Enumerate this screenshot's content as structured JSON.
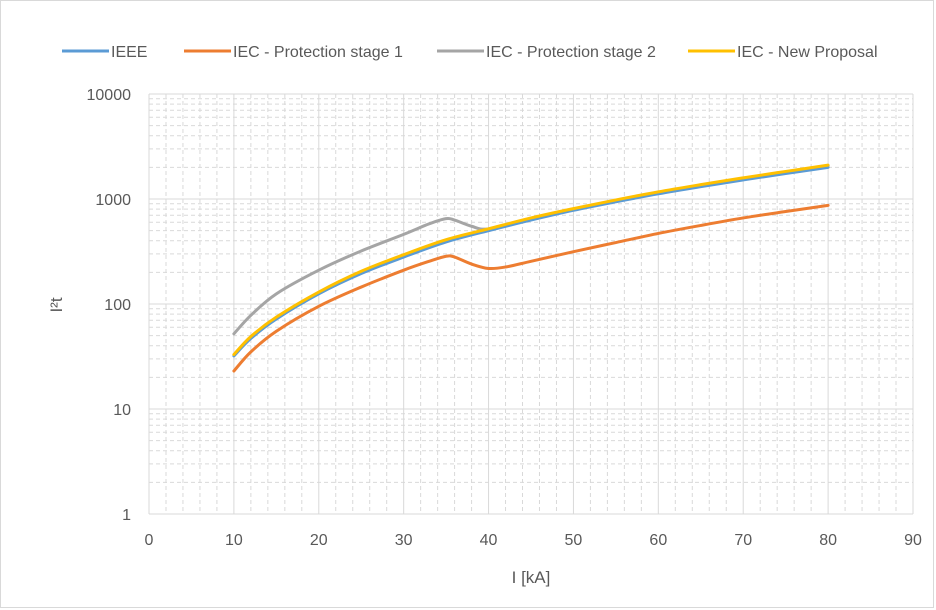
{
  "chart_data": {
    "type": "line",
    "title": "",
    "xlabel": "I [kA]",
    "ylabel": "I²t",
    "xlim": [
      0,
      90
    ],
    "ylim": [
      1,
      10000
    ],
    "yscale": "log",
    "x_ticks": [
      "0",
      "10",
      "20",
      "30",
      "40",
      "50",
      "60",
      "70",
      "80",
      "90"
    ],
    "y_ticks": [
      "1",
      "10",
      "100",
      "1000",
      "10000"
    ],
    "grid": "major solid, minor dashed",
    "legend": "top",
    "series": [
      {
        "name": "IEEE",
        "color": "#5b9bd5",
        "points": [
          [
            10,
            32
          ],
          [
            12,
            47
          ],
          [
            15,
            72
          ],
          [
            20,
            125
          ],
          [
            25,
            195
          ],
          [
            30,
            280
          ],
          [
            35,
            390
          ],
          [
            40,
            500
          ],
          [
            45,
            630
          ],
          [
            50,
            780
          ],
          [
            55,
            940
          ],
          [
            60,
            1120
          ],
          [
            65,
            1310
          ],
          [
            70,
            1520
          ],
          [
            75,
            1750
          ],
          [
            80,
            2000
          ]
        ]
      },
      {
        "name": "IEC - Protection stage 1",
        "color": "#ed7d31",
        "points": [
          [
            10,
            23
          ],
          [
            12,
            35
          ],
          [
            15,
            55
          ],
          [
            20,
            95
          ],
          [
            25,
            145
          ],
          [
            30,
            210
          ],
          [
            33,
            255
          ],
          [
            35,
            285
          ],
          [
            36,
            280
          ],
          [
            38,
            240
          ],
          [
            40,
            218
          ],
          [
            42,
            225
          ],
          [
            45,
            255
          ],
          [
            50,
            315
          ],
          [
            55,
            385
          ],
          [
            60,
            470
          ],
          [
            65,
            560
          ],
          [
            70,
            660
          ],
          [
            75,
            760
          ],
          [
            80,
            870
          ]
        ]
      },
      {
        "name": "IEC - Protection stage 2",
        "color": "#a5a5a5",
        "points": [
          [
            10,
            52
          ],
          [
            12,
            78
          ],
          [
            15,
            125
          ],
          [
            20,
            210
          ],
          [
            25,
            320
          ],
          [
            30,
            460
          ],
          [
            33,
            580
          ],
          [
            35,
            650
          ],
          [
            36,
            630
          ],
          [
            38,
            550
          ],
          [
            40,
            520
          ],
          [
            45,
            650
          ],
          [
            50,
            800
          ],
          [
            55,
            960
          ],
          [
            60,
            1150
          ],
          [
            65,
            1350
          ],
          [
            70,
            1570
          ],
          [
            75,
            1810
          ],
          [
            80,
            2080
          ]
        ]
      },
      {
        "name": "IEC - New Proposal",
        "color": "#ffc000",
        "points": [
          [
            10,
            33
          ],
          [
            12,
            49
          ],
          [
            15,
            75
          ],
          [
            20,
            130
          ],
          [
            25,
            205
          ],
          [
            30,
            295
          ],
          [
            35,
            410
          ],
          [
            40,
            520
          ],
          [
            45,
            660
          ],
          [
            50,
            810
          ],
          [
            55,
            980
          ],
          [
            60,
            1170
          ],
          [
            65,
            1370
          ],
          [
            70,
            1590
          ],
          [
            75,
            1830
          ],
          [
            80,
            2100
          ]
        ]
      }
    ]
  }
}
